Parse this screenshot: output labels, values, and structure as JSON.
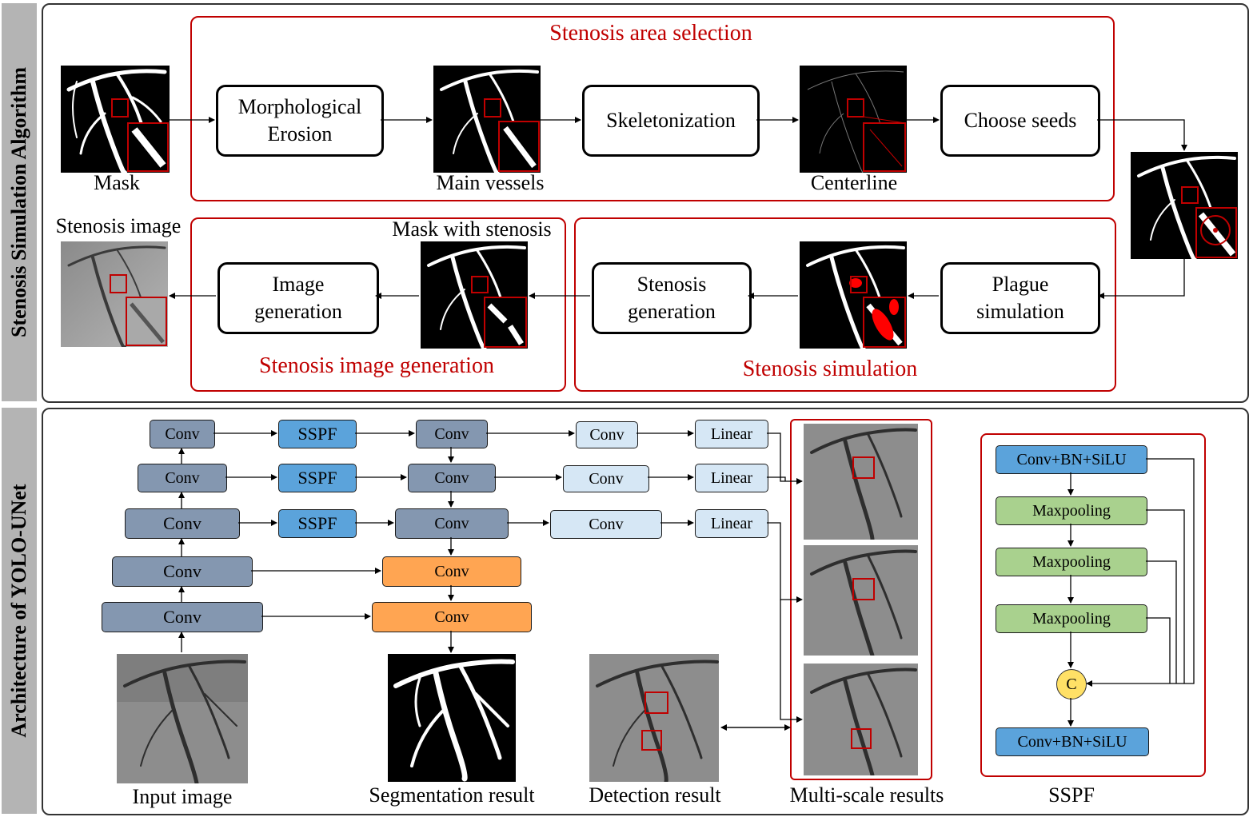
{
  "sections": {
    "top_label": "Stenosis Simulation Algorithm",
    "bottom_label": "Architecture of YOLO-UNet"
  },
  "top": {
    "area_selection_title": "Stenosis area selection",
    "image_generation_title": "Stenosis image generation",
    "simulation_title": "Stenosis simulation",
    "processes": {
      "erosion": "Morphological\nErosion",
      "skeletonization": "Skeletonization",
      "choose_seeds": "Choose seeds",
      "plague": "Plague\nsimulation",
      "stenosis_gen": "Stenosis\ngeneration",
      "image_gen": "Image\ngeneration"
    },
    "captions": {
      "mask": "Mask",
      "main_vessels": "Main vessels",
      "centerline": "Centerline",
      "mask_with_stenosis": "Mask with stenosis",
      "stenosis_image": "Stenosis image"
    }
  },
  "bottom": {
    "blocks": {
      "conv": "Conv",
      "sspf": "SSPF",
      "linear": "Linear"
    },
    "sspf_detail": {
      "conv_bn_silu": "Conv+BN+SiLU",
      "maxpooling": "Maxpooling",
      "concat": "C"
    },
    "captions": {
      "input_image": "Input image",
      "segmentation_result": "Segmentation result",
      "detection_result": "Detection result",
      "multi_scale_results": "Multi-scale results",
      "sspf": "SSPF"
    }
  },
  "colors": {
    "red_accent": "#c00000",
    "encoder_gray": "#8497b0",
    "sspf_blue": "#5ba3db",
    "head_light_blue": "#d6e7f5",
    "decoder_orange": "#ffa552",
    "maxpool_green": "#a9d18e",
    "concat_yellow": "#ffe066"
  }
}
